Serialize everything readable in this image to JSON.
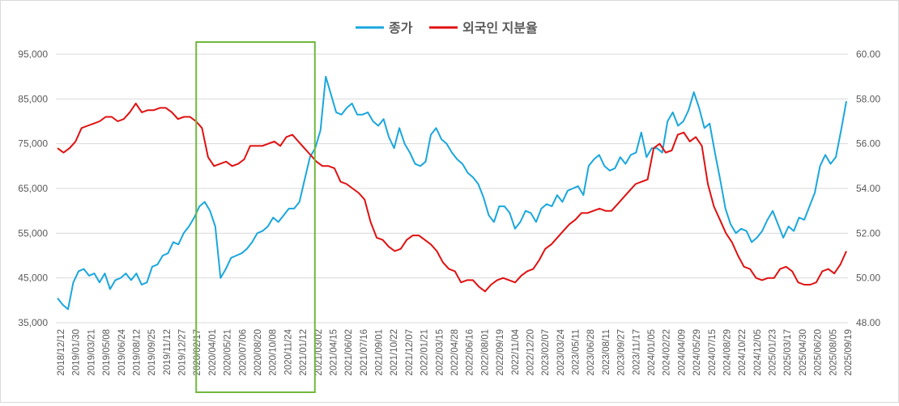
{
  "chart_data": {
    "type": "line",
    "title": "",
    "legend": [
      {
        "name": "종가",
        "color": "#1aa7dd",
        "axis": "left"
      },
      {
        "name": "외국인 지분율",
        "color": "#e01010",
        "axis": "right"
      }
    ],
    "legend_position": "top",
    "y_left": {
      "min": 35000,
      "max": 95000,
      "ticks": [
        "35,000",
        "45,000",
        "55,000",
        "65,000",
        "75,000",
        "85,000",
        "95,000"
      ],
      "tick_values": [
        35000,
        45000,
        55000,
        65000,
        75000,
        85000,
        95000
      ]
    },
    "y_right": {
      "min": 48.0,
      "max": 60.0,
      "ticks": [
        "48.00",
        "50.00",
        "52.00",
        "54.00",
        "56.00",
        "58.00",
        "60.00"
      ],
      "tick_values": [
        48,
        50,
        52,
        54,
        56,
        58,
        60
      ]
    },
    "x_ticks": [
      "2018/12/12",
      "2019/01/30",
      "2019/03/21",
      "2019/05/08",
      "2019/06/24",
      "2019/08/12",
      "2019/09/25",
      "2019/11/12",
      "2019/12/27",
      "2020/02/17",
      "2020/04/01",
      "2020/05/21",
      "2020/07/06",
      "2020/08/20",
      "2020/10/08",
      "2020/11/24",
      "2021/01/12",
      "2021/03/02",
      "2021/04/15",
      "2021/06/02",
      "2021/07/16",
      "2021/09/01",
      "2021/10/22",
      "2021/12/07",
      "2022/01/21",
      "2022/03/15",
      "2022/04/28",
      "2022/06/16",
      "2022/08/01",
      "2022/09/19",
      "2022/11/04",
      "2022/12/20",
      "2023/02/07",
      "2023/03/24",
      "2023/05/11",
      "2023/06/28",
      "2023/08/11",
      "2023/09/27",
      "2023/11/17",
      "2024/01/05",
      "2024/02/22",
      "2024/04/09",
      "2024/05/29",
      "2024/07/15",
      "2024/08/29",
      "2024/10/22",
      "2024/12/05",
      "2025/01/23",
      "2025/03/17",
      "2025/04/30",
      "2025/06/20",
      "2025/08/05",
      "2025/09/19"
    ],
    "series": [
      {
        "name": "종가",
        "axis": "left",
        "values": [
          40500,
          39000,
          38000,
          44000,
          46500,
          47000,
          45500,
          46000,
          44000,
          46000,
          42500,
          44500,
          45000,
          46000,
          44500,
          46000,
          43500,
          44000,
          47500,
          48000,
          50000,
          50500,
          53000,
          52500,
          55000,
          56500,
          58500,
          61000,
          62000,
          60000,
          56500,
          45000,
          47000,
          49500,
          50000,
          50500,
          51500,
          53000,
          55000,
          55500,
          56500,
          58500,
          57500,
          59000,
          60500,
          60500,
          62000,
          67000,
          72000,
          74000,
          78000,
          90000,
          86000,
          82000,
          81500,
          83000,
          84000,
          81500,
          81500,
          82000,
          80000,
          79000,
          80500,
          76500,
          74000,
          78500,
          75000,
          73000,
          70500,
          70000,
          71000,
          77000,
          78500,
          76000,
          75000,
          73000,
          71500,
          70500,
          68500,
          67500,
          66000,
          63000,
          59000,
          57500,
          61000,
          61000,
          59500,
          56000,
          57500,
          60000,
          59500,
          57500,
          60500,
          61500,
          61000,
          63500,
          62000,
          64500,
          65000,
          65500,
          63500,
          70000,
          71500,
          72500,
          70000,
          69000,
          69500,
          72000,
          70500,
          72500,
          73000,
          77500,
          72000,
          74000,
          74000,
          73000,
          80000,
          82000,
          79000,
          80000,
          82500,
          86500,
          83000,
          78500,
          79500,
          73000,
          67000,
          60500,
          57000,
          55000,
          56000,
          55500,
          53000,
          54000,
          55500,
          58000,
          60000,
          57000,
          54000,
          56500,
          55500,
          58500,
          58000,
          61000,
          64000,
          70000,
          72500,
          70500,
          72000,
          78000,
          84500
        ]
      },
      {
        "name": "외국인 지분율",
        "axis": "right",
        "values": [
          55.8,
          55.6,
          55.8,
          56.1,
          56.7,
          56.8,
          56.9,
          57.0,
          57.2,
          57.2,
          57.0,
          57.1,
          57.4,
          57.8,
          57.4,
          57.5,
          57.5,
          57.6,
          57.6,
          57.4,
          57.1,
          57.2,
          57.2,
          57.0,
          56.7,
          55.4,
          55.0,
          55.1,
          55.2,
          55.0,
          55.1,
          55.3,
          55.9,
          55.9,
          55.9,
          56.0,
          56.1,
          55.9,
          56.3,
          56.4,
          56.1,
          55.8,
          55.5,
          55.2,
          55.0,
          55.0,
          54.9,
          54.3,
          54.2,
          54.0,
          53.8,
          53.5,
          52.5,
          51.8,
          51.7,
          51.4,
          51.2,
          51.3,
          51.7,
          51.9,
          51.9,
          51.7,
          51.5,
          51.2,
          50.7,
          50.4,
          50.3,
          49.8,
          49.9,
          49.9,
          49.6,
          49.4,
          49.7,
          49.9,
          50.0,
          49.9,
          49.8,
          50.1,
          50.3,
          50.4,
          50.8,
          51.3,
          51.5,
          51.8,
          52.1,
          52.4,
          52.6,
          52.9,
          52.9,
          53.0,
          53.1,
          53.0,
          53.0,
          53.3,
          53.6,
          53.9,
          54.2,
          54.3,
          54.4,
          55.8,
          56.0,
          55.6,
          55.7,
          56.4,
          56.5,
          56.1,
          56.3,
          55.9,
          54.2,
          53.2,
          52.6,
          52.0,
          51.6,
          51.0,
          50.5,
          50.4,
          50.0,
          49.9,
          50.0,
          50.0,
          50.4,
          50.5,
          50.3,
          49.8,
          49.7,
          49.7,
          49.8,
          50.3,
          50.4,
          50.2,
          50.6,
          51.2
        ]
      }
    ],
    "annotation": {
      "type": "highlight-box",
      "from": "2020/02/17",
      "to": "2021/03/02",
      "color": "#70b83c"
    }
  }
}
